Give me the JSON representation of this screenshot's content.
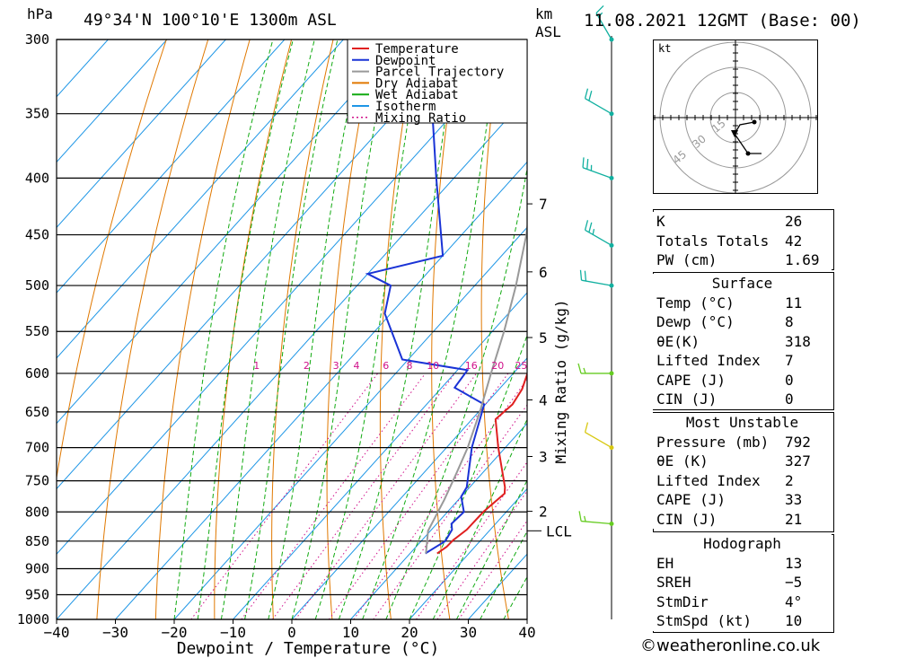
{
  "header": {
    "hpa_label": "hPa",
    "location": "49°34'N 100°10'E 1300m ASL",
    "km_label": "km",
    "asl_label": "ASL",
    "datetime": "11.08.2021 12GMT (Base: 00)"
  },
  "chart_data": {
    "type": "skew-t log-p",
    "xlabel": "Dewpoint / Temperature (°C)",
    "ylabel": "hPa",
    "mixing_ratio_axis_label": "Mixing Ratio (g/kg)",
    "temperature_ticks": [
      -40,
      -30,
      -20,
      -10,
      0,
      10,
      20,
      30,
      40
    ],
    "temperature_tick_labels": [
      "−40",
      "−30",
      "−20",
      "−10",
      "0",
      "10",
      "20",
      "30",
      "40"
    ],
    "pressure_levels": [
      300,
      350,
      400,
      450,
      500,
      550,
      600,
      650,
      700,
      750,
      800,
      850,
      900,
      950,
      1000
    ],
    "xlim": [
      -40,
      40
    ],
    "ylim": [
      1000,
      300
    ],
    "km_ticks": [
      {
        "label": "7",
        "pressure": 422
      },
      {
        "label": "6",
        "pressure": 486
      },
      {
        "label": "5",
        "pressure": 557
      },
      {
        "label": "4",
        "pressure": 634
      },
      {
        "label": "3",
        "pressure": 713
      },
      {
        "label": "2",
        "pressure": 799
      }
    ],
    "lcl": {
      "label": "LCL",
      "pressure": 832
    },
    "mixing_ratio_labels": [
      {
        "label": "1",
        "x_temp": -6
      },
      {
        "label": "2",
        "x_temp": 2.5
      },
      {
        "label": "3",
        "x_temp": 7.5
      },
      {
        "label": "4",
        "x_temp": 11
      },
      {
        "label": "6",
        "x_temp": 16
      },
      {
        "label": "8",
        "x_temp": 20
      },
      {
        "label": "10",
        "x_temp": 24
      },
      {
        "label": "16",
        "x_temp": 30.5
      },
      {
        "label": "20",
        "x_temp": 35
      },
      {
        "label": "25",
        "x_temp": 39
      }
    ],
    "legend": {
      "position": "top-right",
      "entries": [
        {
          "name": "Temperature",
          "color": "#e02020",
          "style": "solid"
        },
        {
          "name": "Dewpoint",
          "color": "#1a33d6",
          "style": "solid"
        },
        {
          "name": "Parcel Trajectory",
          "color": "#999999",
          "style": "solid"
        },
        {
          "name": "Dry Adiabat",
          "color": "#e07800",
          "style": "solid"
        },
        {
          "name": "Wet Adiabat",
          "color": "#11aa11",
          "style": "solid"
        },
        {
          "name": "Isotherm",
          "color": "#1e96e6",
          "style": "solid"
        },
        {
          "name": "Mixing Ratio",
          "color": "#d0108a",
          "style": "dotted"
        }
      ]
    },
    "series": [
      {
        "name": "Temperature",
        "color": "#e02020",
        "points": [
          {
            "p": 872,
            "t": 14.6
          },
          {
            "p": 860,
            "t": 15.2
          },
          {
            "p": 848,
            "t": 15.3
          },
          {
            "p": 830,
            "t": 16.0
          },
          {
            "p": 800,
            "t": 16.1
          },
          {
            "p": 770,
            "t": 16.9
          },
          {
            "p": 760,
            "t": 16.0
          },
          {
            "p": 700,
            "t": 8.8
          },
          {
            "p": 660,
            "t": 4.0
          },
          {
            "p": 640,
            "t": 4.6
          },
          {
            "p": 620,
            "t": 3.9
          },
          {
            "p": 600,
            "t": 2.4
          },
          {
            "p": 580,
            "t": 1.2
          },
          {
            "p": 500,
            "t": -6.8
          },
          {
            "p": 480,
            "t": -9.3
          },
          {
            "p": 470,
            "t": -11.5
          },
          {
            "p": 450,
            "t": -14.0
          },
          {
            "p": 400,
            "t": -21.7
          },
          {
            "p": 350,
            "t": -29.5
          },
          {
            "p": 300,
            "t": -38.5
          }
        ]
      },
      {
        "name": "Dewpoint",
        "color": "#1a33d6",
        "points": [
          {
            "p": 872,
            "t": 12.6
          },
          {
            "p": 850,
            "t": 14.1
          },
          {
            "p": 830,
            "t": 13.5
          },
          {
            "p": 820,
            "t": 12.5
          },
          {
            "p": 800,
            "t": 12.8
          },
          {
            "p": 775,
            "t": 10.0
          },
          {
            "p": 760,
            "t": 9.5
          },
          {
            "p": 700,
            "t": 4.3
          },
          {
            "p": 640,
            "t": -0.2
          },
          {
            "p": 618,
            "t": -7.8
          },
          {
            "p": 596,
            "t": -8.3
          },
          {
            "p": 583,
            "t": -21.0
          },
          {
            "p": 530,
            "t": -31.0
          },
          {
            "p": 500,
            "t": -34.3
          },
          {
            "p": 488,
            "t": -40.0
          },
          {
            "p": 470,
            "t": -30.0
          },
          {
            "p": 400,
            "t": -43.0
          },
          {
            "p": 350,
            "t": -53.5
          },
          {
            "p": 300,
            "t": -64.0
          }
        ]
      },
      {
        "name": "Parcel Trajectory",
        "color": "#999999",
        "points": [
          {
            "p": 872,
            "t": 12.7
          },
          {
            "p": 832,
            "t": 9.6
          },
          {
            "p": 780,
            "t": 7.6
          },
          {
            "p": 740,
            "t": 5.7
          },
          {
            "p": 700,
            "t": 3.6
          },
          {
            "p": 650,
            "t": 0.2
          },
          {
            "p": 600,
            "t": -3.8
          },
          {
            "p": 550,
            "t": -8.0
          },
          {
            "p": 500,
            "t": -13.0
          },
          {
            "p": 450,
            "t": -19.0
          },
          {
            "p": 400,
            "t": -26.5
          },
          {
            "p": 350,
            "t": -35.5
          },
          {
            "p": 300,
            "t": -45.0
          }
        ]
      }
    ],
    "wind_barbs": [
      {
        "p": 300,
        "dir": 330,
        "speed_kt": 15
      },
      {
        "p": 350,
        "dir": 300,
        "speed_kt": 20
      },
      {
        "p": 400,
        "dir": 290,
        "speed_kt": 25
      },
      {
        "p": 460,
        "dir": 300,
        "speed_kt": 25
      },
      {
        "p": 500,
        "dir": 280,
        "speed_kt": 20
      },
      {
        "p": 600,
        "dir": 270,
        "speed_kt": 15
      },
      {
        "p": 700,
        "dir": 300,
        "speed_kt": 10
      },
      {
        "p": 820,
        "dir": 275,
        "speed_kt": 15
      }
    ],
    "hodograph": {
      "units_label": "kt",
      "ring_labels": [
        "15",
        "30",
        "45"
      ],
      "storm_motion": {
        "dir": 4,
        "speed_kt": 10
      }
    }
  },
  "indices": {
    "general": [
      {
        "key": "K",
        "value": "26"
      },
      {
        "key": "Totals Totals",
        "value": "42"
      },
      {
        "key": "PW (cm)",
        "value": "1.69"
      }
    ],
    "surface_title": "Surface",
    "surface": [
      {
        "key": "Temp (°C)",
        "value": "11"
      },
      {
        "key": "Dewp (°C)",
        "value": "8"
      },
      {
        "key": "θE(K)",
        "value": "318"
      },
      {
        "key": "Lifted Index",
        "value": "7"
      },
      {
        "key": "CAPE (J)",
        "value": "0"
      },
      {
        "key": "CIN (J)",
        "value": "0"
      }
    ],
    "mu_title": "Most Unstable",
    "mu": [
      {
        "key": "Pressure (mb)",
        "value": "792"
      },
      {
        "key": "θE (K)",
        "value": "327"
      },
      {
        "key": "Lifted Index",
        "value": "2"
      },
      {
        "key": "CAPE (J)",
        "value": "33"
      },
      {
        "key": "CIN (J)",
        "value": "21"
      }
    ],
    "hodo_title": "Hodograph",
    "hodo": [
      {
        "key": "EH",
        "value": "13"
      },
      {
        "key": "SREH",
        "value": "−5"
      },
      {
        "key": "StmDir",
        "value": "4°"
      },
      {
        "key": "StmSpd (kt)",
        "value": "10"
      }
    ]
  },
  "footer": {
    "copyright": "©weatheronline.co.uk"
  }
}
